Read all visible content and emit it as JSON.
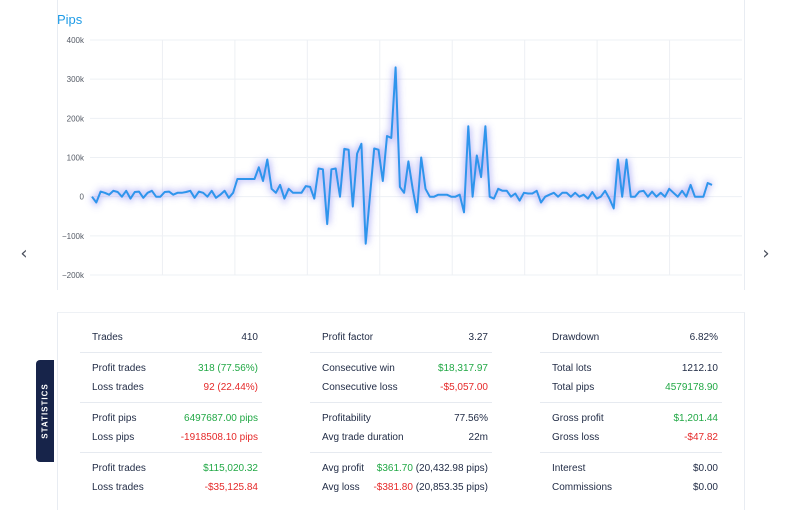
{
  "chart": {
    "title": "Pips",
    "line_color": "#2f95ec",
    "glow_color": "#6b6df0"
  },
  "chart_data": {
    "type": "line",
    "title": "Pips",
    "ylim": [
      -200000,
      400000
    ],
    "ytick_labels": [
      "400k",
      "300k",
      "200k",
      "100k",
      "0",
      "−100k",
      "−200k"
    ],
    "yticks": [
      400000,
      300000,
      200000,
      100000,
      0,
      -100000,
      -200000
    ],
    "grid": true,
    "series": [
      {
        "values": [
          0,
          -15000,
          13000,
          10000,
          5000,
          15000,
          12000,
          0,
          15000,
          -5000,
          12000,
          13000,
          -3000,
          10000,
          15000,
          0,
          0,
          12000,
          13000,
          5000,
          10000,
          10000,
          12000,
          15000,
          -3000,
          13000,
          10000,
          0,
          15000,
          -3000,
          5000,
          15000,
          -3000,
          10000,
          45000,
          45000,
          45000,
          45000,
          45000,
          75000,
          40000,
          95000,
          20000,
          10000,
          30000,
          -5000,
          20000,
          10000,
          10000,
          10000,
          27000,
          25000,
          -5000,
          72000,
          70000,
          -70000,
          70000,
          72000,
          0,
          122000,
          120000,
          -25000,
          110000,
          135000,
          -120000,
          0,
          123000,
          120000,
          40000,
          155000,
          150000,
          330000,
          25000,
          10000,
          90000,
          20000,
          -40000,
          100000,
          20000,
          0,
          0,
          5000,
          5000,
          5000,
          0,
          0,
          5000,
          -40000,
          180000,
          0,
          105000,
          50000,
          180000,
          0,
          -5000,
          20000,
          15000,
          15000,
          0,
          8000,
          -10000,
          10000,
          8000,
          8000,
          15000,
          -15000,
          0,
          5000,
          10000,
          0,
          10000,
          10000,
          0,
          10000,
          0,
          5000,
          -5000,
          12000,
          -5000,
          0,
          15000,
          -5000,
          -30000,
          95000,
          0,
          95000,
          0,
          0,
          13000,
          15000,
          0,
          13000,
          0,
          10000,
          0,
          20000,
          10000,
          0,
          15000,
          0,
          30000,
          0,
          0,
          0,
          35000,
          30000
        ]
      }
    ]
  },
  "nav": {
    "prev_icon": "chevron-left-icon",
    "next_icon": "chevron-right-icon"
  },
  "stats_tab_label": "STATISTICS",
  "stats": {
    "col1": [
      [
        {
          "label": "Trades",
          "value": "410",
          "tone": "val"
        }
      ],
      [
        {
          "label": "Profit trades",
          "value": "318 (77.56%)",
          "tone": "pos"
        },
        {
          "label": "Loss trades",
          "value": "92 (22.44%)",
          "tone": "neg"
        }
      ],
      [
        {
          "label": "Profit pips",
          "value": "6497687.00 pips",
          "tone": "pos"
        },
        {
          "label": "Loss pips",
          "value": "-1918508.10 pips",
          "tone": "neg"
        }
      ],
      [
        {
          "label": "Profit trades",
          "value": "$115,020.32",
          "tone": "pos"
        },
        {
          "label": "Loss trades",
          "value": "-$35,125.84",
          "tone": "neg"
        }
      ]
    ],
    "col2": [
      [
        {
          "label": "Profit factor",
          "value": "3.27",
          "tone": "val"
        }
      ],
      [
        {
          "label": "Consecutive win",
          "value": "$18,317.97",
          "tone": "pos"
        },
        {
          "label": "Consecutive loss",
          "value": "-$5,057.00",
          "tone": "neg"
        }
      ],
      [
        {
          "label": "Profitability",
          "value": "77.56%",
          "tone": "val"
        },
        {
          "label": "Avg trade duration",
          "value": "22m",
          "tone": "val"
        }
      ],
      [
        {
          "label": "Avg profit",
          "value": "$361.70",
          "extra": "(20,432.98 pips)",
          "tone": "pos"
        },
        {
          "label": "Avg loss",
          "value": "-$381.80",
          "extra": "(20,853.35 pips)",
          "tone": "neg"
        }
      ]
    ],
    "col3": [
      [
        {
          "label": "Drawdown",
          "value": "6.82%",
          "tone": "val"
        }
      ],
      [
        {
          "label": "Total lots",
          "value": "1212.10",
          "tone": "val"
        },
        {
          "label": "Total pips",
          "value": "4579178.90",
          "tone": "pos"
        }
      ],
      [
        {
          "label": "Gross profit",
          "value": "$1,201.44",
          "tone": "pos"
        },
        {
          "label": "Gross loss",
          "value": "-$47.82",
          "tone": "neg"
        }
      ],
      [
        {
          "label": "Interest",
          "value": "$0.00",
          "tone": "val"
        },
        {
          "label": "Commissions",
          "value": "$0.00",
          "tone": "val"
        }
      ]
    ]
  }
}
